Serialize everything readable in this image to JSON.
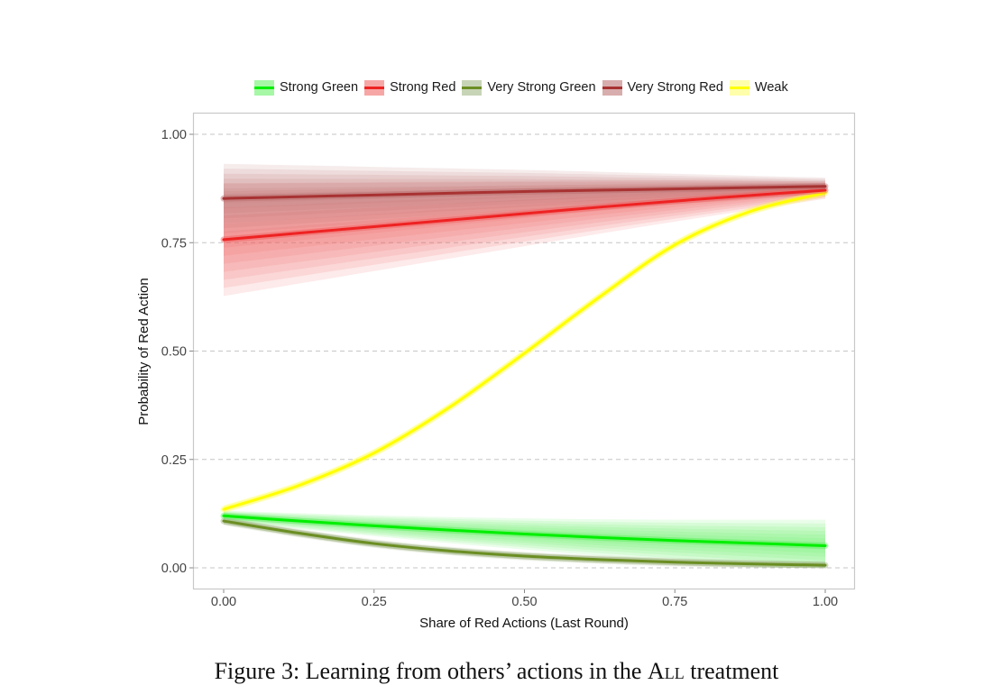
{
  "chart_data": {
    "type": "line",
    "xlabel": "Share of Red Actions (Last Round)",
    "ylabel": "Probability of Red Action",
    "xlim": [
      0,
      1
    ],
    "ylim": [
      0,
      1
    ],
    "x_ticks": [
      "0.00",
      "0.25",
      "0.50",
      "0.75",
      "1.00"
    ],
    "y_ticks": [
      "0.00",
      "0.25",
      "0.50",
      "0.75",
      "1.00"
    ],
    "grid": "horizontal dashed",
    "legend_position": "top",
    "x": [
      0,
      0.125,
      0.25,
      0.375,
      0.5,
      0.625,
      0.75,
      0.875,
      1.0
    ],
    "series": [
      {
        "name": "Strong Green",
        "color": "#00ee00",
        "band_color": "#5cf05c",
        "values": [
          0.12,
          0.108,
          0.097,
          0.087,
          0.078,
          0.07,
          0.063,
          0.057,
          0.051
        ],
        "band_halfwidth_start": 0.012,
        "band_halfwidth_end": 0.06
      },
      {
        "name": "Strong Red",
        "color": "#ee2222",
        "band_color": "#f05c5c",
        "values": [
          0.757,
          0.772,
          0.787,
          0.802,
          0.817,
          0.832,
          0.846,
          0.859,
          0.871
        ],
        "band_halfwidth_start": 0.13,
        "band_halfwidth_end": 0.02
      },
      {
        "name": "Very Strong Green",
        "color": "#6b8e23",
        "band_color": "#9bb07a",
        "values": [
          0.108,
          0.08,
          0.056,
          0.039,
          0.027,
          0.019,
          0.013,
          0.009,
          0.006
        ],
        "band_halfwidth_start": 0.01,
        "band_halfwidth_end": 0.01
      },
      {
        "name": "Very Strong Red",
        "color": "#a83232",
        "band_color": "#b86a6a",
        "values": [
          0.852,
          0.856,
          0.86,
          0.864,
          0.868,
          0.871,
          0.874,
          0.877,
          0.88
        ],
        "band_halfwidth_start": 0.08,
        "band_halfwidth_end": 0.02
      },
      {
        "name": "Weak",
        "color": "#ffff00",
        "band_color": "#ffff66",
        "values": [
          0.135,
          0.19,
          0.265,
          0.37,
          0.495,
          0.625,
          0.745,
          0.822,
          0.865
        ],
        "band_halfwidth_start": 0.01,
        "band_halfwidth_end": 0.01
      }
    ]
  },
  "caption": {
    "prefix": "Figure 3: Learning from others’ actions in the ",
    "treatment": "All",
    "suffix": " treatment"
  }
}
